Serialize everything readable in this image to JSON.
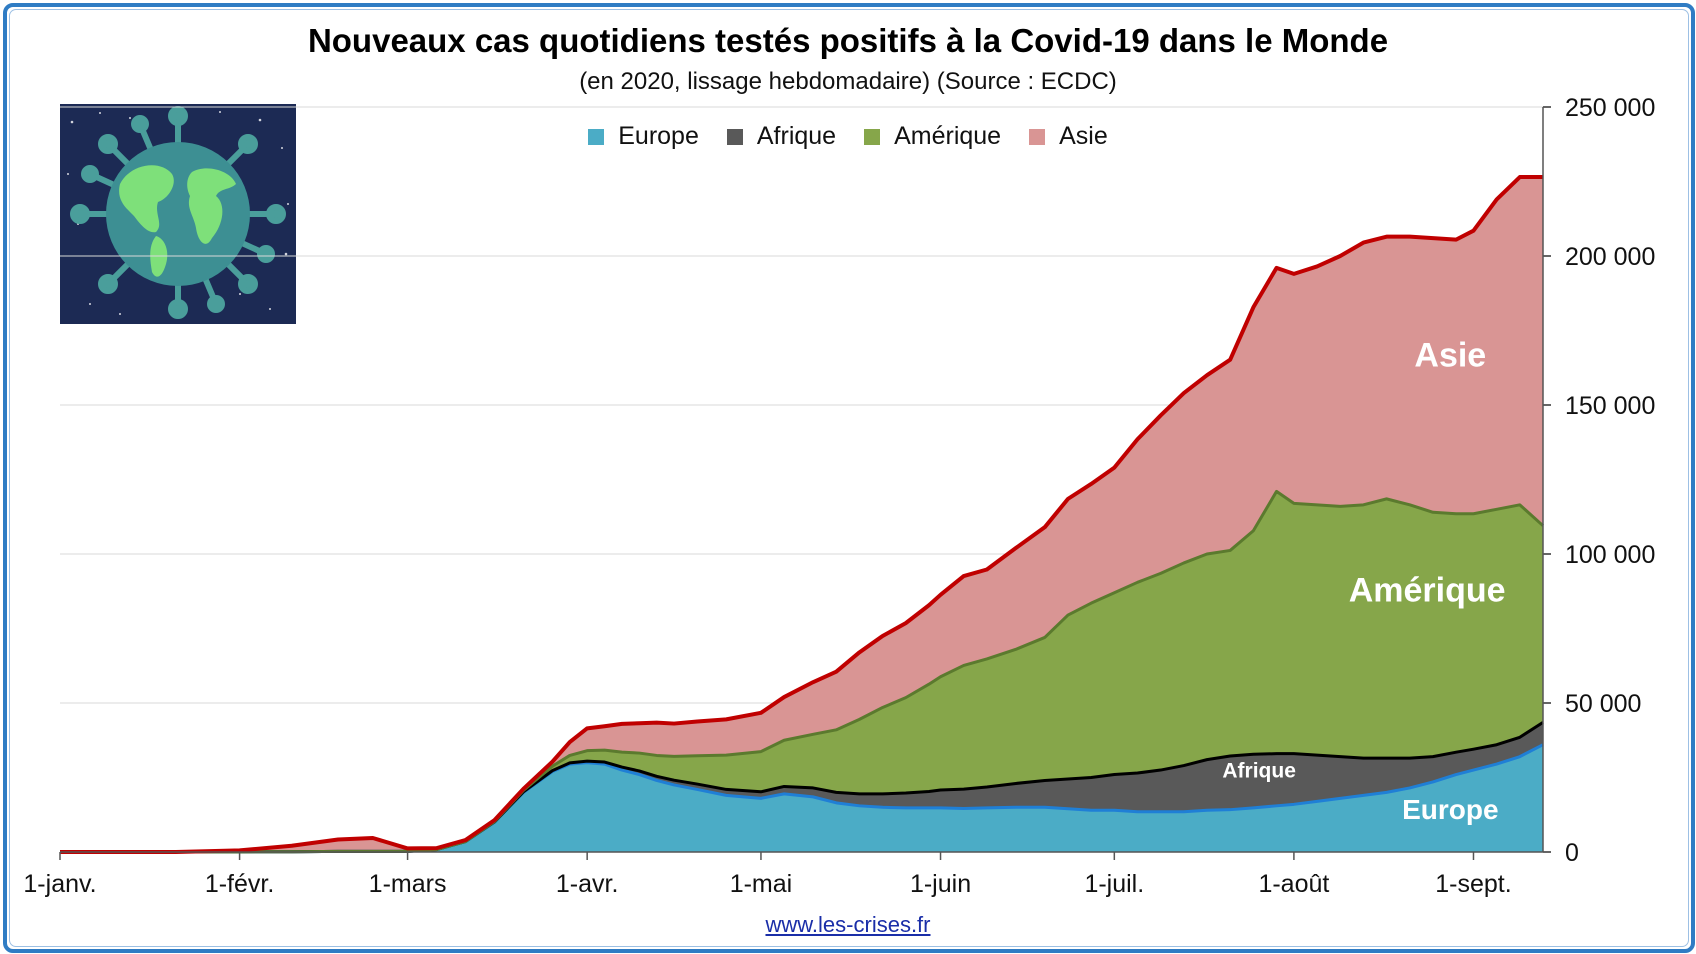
{
  "chart_data": {
    "type": "area",
    "stacked": true,
    "title": "Nouveaux cas quotidiens testés positifs à la Covid-19 dans le Monde",
    "subtitle": "(en 2020, lissage hebdomadaire) (Source : ECDC)",
    "x_ticks": [
      "1-janv.",
      "1-févr.",
      "1-mars",
      "1-avr.",
      "1-mai",
      "1-juin",
      "1-juil.",
      "1-août",
      "1-sept."
    ],
    "x_tick_days": [
      0,
      31,
      60,
      91,
      121,
      152,
      182,
      213,
      244
    ],
    "x_range_days": [
      0,
      256
    ],
    "y_ticks": [
      "0",
      "50 000",
      "100 000",
      "150 000",
      "200 000",
      "250 000"
    ],
    "ylim": [
      0,
      250000
    ],
    "y_axis_position": "right",
    "grid": true,
    "legend_position": "top-center",
    "x_days": [
      0,
      20,
      31,
      40,
      48,
      54,
      60,
      65,
      70,
      75,
      80,
      85,
      88,
      91,
      94,
      97,
      100,
      103,
      106,
      110,
      115,
      121,
      125,
      130,
      134,
      138,
      142,
      146,
      150,
      152,
      156,
      160,
      165,
      170,
      174,
      178,
      182,
      186,
      190,
      194,
      198,
      202,
      206,
      210,
      213,
      217,
      221,
      225,
      229,
      233,
      237,
      241,
      244,
      248,
      252,
      256
    ],
    "series": [
      {
        "name": "Europe",
        "color": "#4bacc6",
        "values": [
          0,
          0,
          50,
          100,
          200,
          200,
          200,
          800,
          3500,
          10000,
          20000,
          27000,
          29500,
          30000,
          29500,
          27500,
          26000,
          24000,
          22500,
          21000,
          19000,
          18000,
          19500,
          18500,
          16500,
          15500,
          15000,
          14800,
          14800,
          14800,
          14600,
          14800,
          15000,
          15000,
          14500,
          14000,
          14000,
          13500,
          13500,
          13500,
          14000,
          14200,
          14800,
          15500,
          16000,
          17000,
          18000,
          19000,
          20000,
          21500,
          23500,
          26000,
          27500,
          29500,
          32000,
          36000
        ]
      },
      {
        "name": "Afrique",
        "color": "#595959",
        "values": [
          0,
          0,
          0,
          0,
          0,
          0,
          0,
          0,
          0,
          100,
          200,
          300,
          400,
          500,
          700,
          1000,
          1200,
          1400,
          1600,
          1800,
          2000,
          2200,
          2500,
          3000,
          3500,
          4000,
          4500,
          5000,
          5500,
          6000,
          6500,
          7000,
          8000,
          9000,
          10000,
          11000,
          12000,
          13000,
          14000,
          15500,
          17000,
          18000,
          18000,
          17500,
          17000,
          15500,
          14000,
          12500,
          11500,
          10000,
          8500,
          7500,
          7000,
          6500,
          6500,
          7500
        ]
      },
      {
        "name": "Amérique",
        "color": "#86a64a",
        "values": [
          0,
          0,
          0,
          0,
          0,
          0,
          0,
          0,
          0,
          100,
          500,
          1500,
          2500,
          3500,
          4000,
          5000,
          6000,
          7000,
          8000,
          9500,
          11500,
          13500,
          15500,
          18000,
          21000,
          25000,
          29000,
          32000,
          36000,
          38000,
          41500,
          43000,
          45000,
          48000,
          55000,
          58500,
          61000,
          64000,
          66000,
          68000,
          69000,
          69000,
          75000,
          88000,
          84000,
          84000,
          84000,
          85000,
          87000,
          85000,
          82000,
          80000,
          79000,
          79000,
          78000,
          66000
        ]
      },
      {
        "name": "Asie",
        "color": "#d99594",
        "values": [
          0,
          0,
          500,
          2000,
          4000,
          4500,
          1000,
          500,
          500,
          500,
          500,
          1500,
          4500,
          7500,
          8000,
          9500,
          10000,
          11000,
          11000,
          11500,
          12000,
          13000,
          14500,
          17500,
          19500,
          22500,
          24000,
          25000,
          26500,
          27500,
          30000,
          30000,
          34000,
          37000,
          39000,
          40000,
          42000,
          48000,
          53000,
          57000,
          60000,
          64000,
          75000,
          75000,
          77000,
          80000,
          84000,
          88000,
          88000,
          90000,
          92000,
          92000,
          95000,
          104000,
          110000,
          117000
        ]
      }
    ],
    "series_outline_colors": {
      "Europe": "#1f7fd6",
      "Afrique": "#000000",
      "Amérique": "#5b7a2e",
      "Asie": "#c00000"
    },
    "annotations": [
      {
        "text": "Asie",
        "series": "Asie"
      },
      {
        "text": "Amérique",
        "series": "Amérique"
      },
      {
        "text": "Afrique",
        "series": "Afrique"
      },
      {
        "text": "Europe",
        "series": "Europe"
      }
    ]
  },
  "footer": {
    "source_link": "www.les-crises.fr"
  },
  "image": {
    "icon": "virus-globe-icon"
  }
}
